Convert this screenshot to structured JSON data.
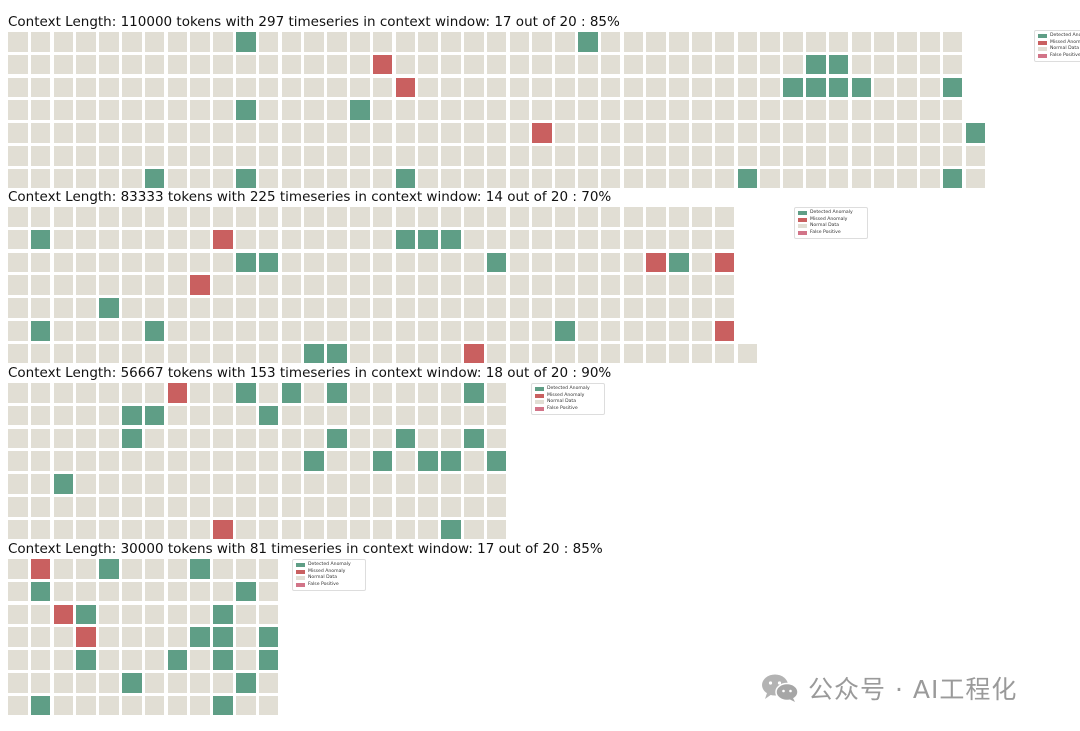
{
  "legend_items": [
    {
      "label": "Detected Anomaly",
      "color": "#5f9e86"
    },
    {
      "label": "Missed Anomaly",
      "color": "#c96060"
    },
    {
      "label": "Normal Data",
      "color": "#e1ded4"
    },
    {
      "label": "False Positive",
      "color": "#d27488"
    }
  ],
  "watermark": {
    "text": "公众号 · AI工程化",
    "icon": "wechat-icon"
  },
  "chart_data": [
    {
      "type": "heatmap",
      "title": "Context Length: 110000 tokens with 297 timeseries in context window: 17 out of 20 : 85%",
      "row_lengths": [
        42,
        42,
        42,
        42,
        43,
        43,
        43
      ],
      "detected": [
        [
          0,
          10
        ],
        [
          0,
          25
        ],
        [
          1,
          35
        ],
        [
          1,
          36
        ],
        [
          2,
          34
        ],
        [
          2,
          35
        ],
        [
          2,
          36
        ],
        [
          2,
          37
        ],
        [
          2,
          41
        ],
        [
          3,
          10
        ],
        [
          3,
          15
        ],
        [
          4,
          42
        ],
        [
          6,
          6
        ],
        [
          6,
          10
        ],
        [
          6,
          17
        ],
        [
          6,
          32
        ],
        [
          6,
          41
        ]
      ],
      "missed": [
        [
          1,
          16
        ],
        [
          2,
          17
        ],
        [
          4,
          23
        ]
      ],
      "false_positive": []
    },
    {
      "type": "heatmap",
      "title": "Context Length: 83333 tokens with 225 timeseries in context window: 14 out of 20 : 70%",
      "row_lengths": [
        32,
        32,
        32,
        32,
        32,
        32,
        33
      ],
      "detected": [
        [
          1,
          1
        ],
        [
          1,
          17
        ],
        [
          1,
          18
        ],
        [
          1,
          19
        ],
        [
          2,
          10
        ],
        [
          2,
          11
        ],
        [
          2,
          21
        ],
        [
          2,
          29
        ],
        [
          4,
          4
        ],
        [
          5,
          1
        ],
        [
          5,
          6
        ],
        [
          5,
          24
        ],
        [
          6,
          13
        ],
        [
          6,
          14
        ]
      ],
      "missed": [
        [
          1,
          9
        ],
        [
          2,
          28
        ],
        [
          2,
          31
        ],
        [
          3,
          8
        ],
        [
          5,
          31
        ],
        [
          6,
          20
        ]
      ],
      "false_positive": []
    },
    {
      "type": "heatmap",
      "title": "Context Length: 56667 tokens with 153 timeseries in context window: 18 out of 20 : 90%",
      "row_lengths": [
        22,
        22,
        22,
        22,
        22,
        22,
        22
      ],
      "detected": [
        [
          0,
          10
        ],
        [
          0,
          12
        ],
        [
          0,
          14
        ],
        [
          0,
          20
        ],
        [
          1,
          5
        ],
        [
          1,
          6
        ],
        [
          1,
          11
        ],
        [
          2,
          5
        ],
        [
          2,
          14
        ],
        [
          2,
          17
        ],
        [
          2,
          20
        ],
        [
          3,
          13
        ],
        [
          3,
          16
        ],
        [
          3,
          18
        ],
        [
          3,
          19
        ],
        [
          3,
          21
        ],
        [
          4,
          2
        ],
        [
          6,
          19
        ]
      ],
      "missed": [
        [
          0,
          7
        ],
        [
          6,
          9
        ]
      ],
      "false_positive": []
    },
    {
      "type": "heatmap",
      "title": "Context Length: 30000 tokens with 81 timeseries in context window: 17 out of 20 : 85%",
      "row_lengths": [
        12,
        12,
        12,
        12,
        12,
        12,
        12
      ],
      "detected": [
        [
          0,
          4
        ],
        [
          0,
          8
        ],
        [
          1,
          1
        ],
        [
          1,
          10
        ],
        [
          2,
          3
        ],
        [
          2,
          9
        ],
        [
          3,
          8
        ],
        [
          3,
          9
        ],
        [
          3,
          11
        ],
        [
          4,
          3
        ],
        [
          4,
          7
        ],
        [
          4,
          9
        ],
        [
          4,
          11
        ],
        [
          5,
          5
        ],
        [
          5,
          10
        ],
        [
          6,
          1
        ],
        [
          6,
          9
        ]
      ],
      "missed": [
        [
          0,
          1
        ],
        [
          2,
          2
        ],
        [
          3,
          3
        ]
      ],
      "false_positive": []
    }
  ]
}
